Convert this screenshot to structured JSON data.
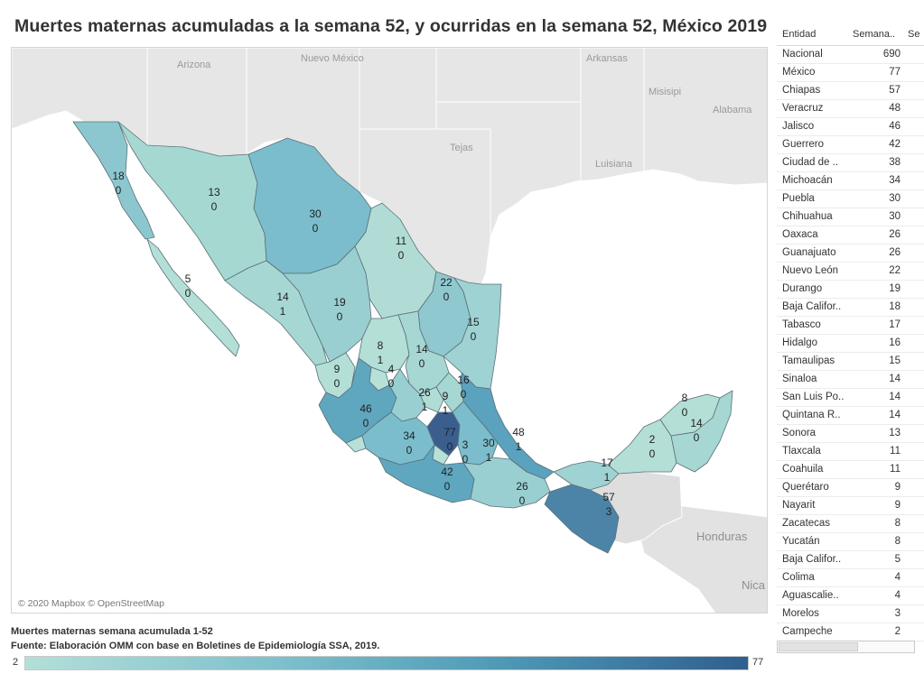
{
  "title": "Muertes maternas acumuladas a la semana 52, y ocurridas en la semana 52, México 2019",
  "map": {
    "copyright": "© 2020 Mapbox © OpenStreetMap",
    "geo_labels": [
      "Arizona",
      "Nuevo México",
      "Arkansas",
      "Misisipi",
      "Alabama",
      "Tejas",
      "Luisiana",
      "Honduras",
      "Nica"
    ],
    "state_labels": [
      {
        "name": "Baja California",
        "total": 18,
        "week": 0
      },
      {
        "name": "Sonora",
        "total": 13,
        "week": 0
      },
      {
        "name": "Chihuahua",
        "total": 30,
        "week": 0
      },
      {
        "name": "Coahuila",
        "total": 11,
        "week": 0
      },
      {
        "name": "Baja California Sur",
        "total": 5,
        "week": 0
      },
      {
        "name": "Sinaloa",
        "total": 14,
        "week": 1
      },
      {
        "name": "Durango",
        "total": 19,
        "week": 0
      },
      {
        "name": "Nuevo León",
        "total": 22,
        "week": 0
      },
      {
        "name": "Tamaulipas",
        "total": 15,
        "week": 0
      },
      {
        "name": "Zacatecas",
        "total": 8,
        "week": 1
      },
      {
        "name": "San Luis Potosí",
        "total": 14,
        "week": 0
      },
      {
        "name": "Nayarit",
        "total": 9,
        "week": 0
      },
      {
        "name": "Aguascalientes",
        "total": 4,
        "week": 0
      },
      {
        "name": "Guanajuato",
        "total": 26,
        "week": 1
      },
      {
        "name": "Querétaro",
        "total": 9,
        "week": 1
      },
      {
        "name": "Hidalgo",
        "total": 16,
        "week": 0
      },
      {
        "name": "Jalisco",
        "total": 46,
        "week": 0
      },
      {
        "name": "Michoacán",
        "total": 34,
        "week": 0
      },
      {
        "name": "México",
        "total": 77,
        "week": 0
      },
      {
        "name": "Morelos",
        "total": 3,
        "week": 0
      },
      {
        "name": "Puebla",
        "total": 30,
        "week": 1
      },
      {
        "name": "Veracruz",
        "total": 48,
        "week": 1
      },
      {
        "name": "Guerrero",
        "total": 42,
        "week": 0
      },
      {
        "name": "Oaxaca",
        "total": 26,
        "week": 0
      },
      {
        "name": "Chiapas",
        "total": 57,
        "week": 3
      },
      {
        "name": "Tabasco",
        "total": 17,
        "week": 1
      },
      {
        "name": "Campeche",
        "total": 2,
        "week": 0
      },
      {
        "name": "Yucatán",
        "total": 8,
        "week": 0
      },
      {
        "name": "Quintana Roo",
        "total": 14,
        "week": 0
      }
    ]
  },
  "legend": {
    "title": "Muertes maternas semana acumulada 1-52",
    "source": "Fuente: Elaboración OMM con base en Boletines de Epidemiología SSA, 2019.",
    "min": "2",
    "max": "77",
    "colors": {
      "low": "#b3dfd9",
      "mid1": "#7ec0cc",
      "mid2": "#4f9bb7",
      "high": "#2f5f8f"
    }
  },
  "table": {
    "headers": [
      "Entidad",
      "Semana..",
      "Se"
    ],
    "rows": [
      {
        "name": "Nacional",
        "value": "690"
      },
      {
        "name": "México",
        "value": "77"
      },
      {
        "name": "Chiapas",
        "value": "57"
      },
      {
        "name": "Veracruz",
        "value": "48"
      },
      {
        "name": "Jalisco",
        "value": "46"
      },
      {
        "name": "Guerrero",
        "value": "42"
      },
      {
        "name": "Ciudad de ..",
        "value": "38"
      },
      {
        "name": "Michoacán",
        "value": "34"
      },
      {
        "name": "Puebla",
        "value": "30"
      },
      {
        "name": "Chihuahua",
        "value": "30"
      },
      {
        "name": "Oaxaca",
        "value": "26"
      },
      {
        "name": "Guanajuato",
        "value": "26"
      },
      {
        "name": "Nuevo León",
        "value": "22"
      },
      {
        "name": "Durango",
        "value": "19"
      },
      {
        "name": "Baja Califor..",
        "value": "18"
      },
      {
        "name": "Tabasco",
        "value": "17"
      },
      {
        "name": "Hidalgo",
        "value": "16"
      },
      {
        "name": "Tamaulipas",
        "value": "15"
      },
      {
        "name": "Sinaloa",
        "value": "14"
      },
      {
        "name": "San Luis Po..",
        "value": "14"
      },
      {
        "name": "Quintana R..",
        "value": "14"
      },
      {
        "name": "Sonora",
        "value": "13"
      },
      {
        "name": "Tlaxcala",
        "value": "11"
      },
      {
        "name": "Coahuila",
        "value": "11"
      },
      {
        "name": "Querétaro",
        "value": "9"
      },
      {
        "name": "Nayarit",
        "value": "9"
      },
      {
        "name": "Zacatecas",
        "value": "8"
      },
      {
        "name": "Yucatán",
        "value": "8"
      },
      {
        "name": "Baja Califor..",
        "value": "5"
      },
      {
        "name": "Colima",
        "value": "4"
      },
      {
        "name": "Aguascalie..",
        "value": "4"
      },
      {
        "name": "Morelos",
        "value": "3"
      },
      {
        "name": "Campeche",
        "value": "2"
      }
    ]
  }
}
